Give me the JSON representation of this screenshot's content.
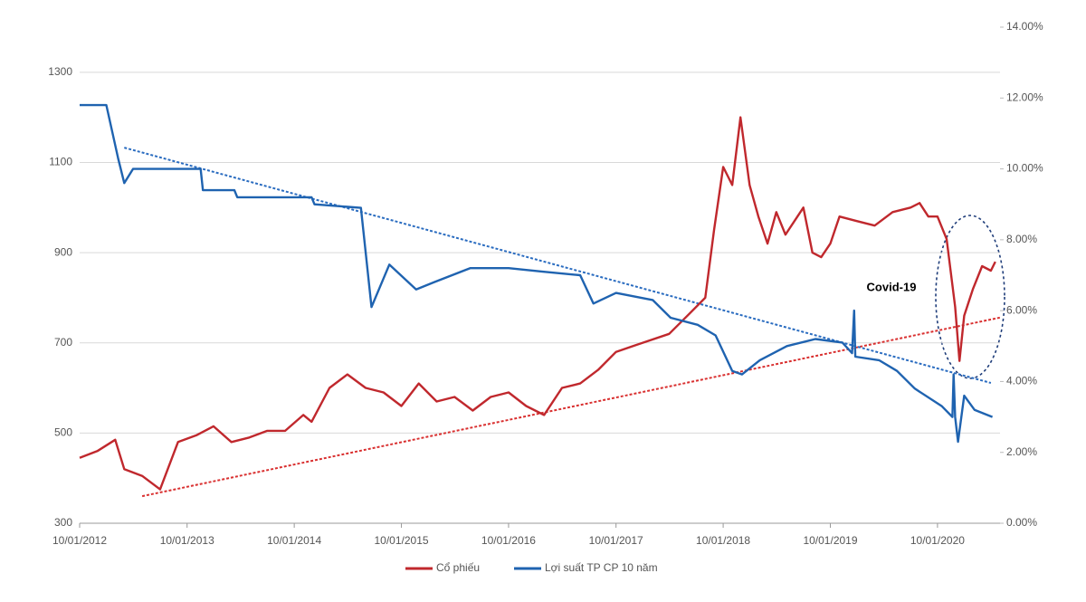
{
  "chart_data": {
    "type": "line",
    "xlim": [
      "10/01/2012",
      "10/08/2020"
    ],
    "xticks": [
      "10/01/2012",
      "10/01/2013",
      "10/01/2014",
      "10/01/2015",
      "10/01/2016",
      "10/01/2017",
      "10/01/2018",
      "10/01/2019",
      "10/01/2020"
    ],
    "ylim": [
      300,
      1400
    ],
    "yticks": [
      300,
      500,
      700,
      900,
      1100,
      1300
    ],
    "y2lim": [
      0,
      14
    ],
    "y2ticks": [
      {
        "value": 0,
        "label": "0.00%"
      },
      {
        "value": 2,
        "label": "2.00%"
      },
      {
        "value": 4,
        "label": "4.00%"
      },
      {
        "value": 6,
        "label": "6.00%"
      },
      {
        "value": 8,
        "label": "8.00%"
      },
      {
        "value": 10,
        "label": "10.00%"
      },
      {
        "value": 12,
        "label": "12.00%"
      },
      {
        "value": 14,
        "label": "14.00%"
      }
    ],
    "grid": true,
    "legend": "bottom",
    "series": [
      {
        "name": "Cổ phiếu",
        "color": "#c0282d",
        "x": [
          "10/01/2012",
          "10/03/2012",
          "10/05/2012",
          "10/06/2012",
          "10/08/2012",
          "10/10/2012",
          "10/12/2012",
          "10/02/2013",
          "10/04/2013",
          "10/06/2013",
          "10/08/2013",
          "10/10/2013",
          "10/12/2013",
          "10/02/2014",
          "10/03/2014",
          "10/05/2014",
          "10/07/2014",
          "10/09/2014",
          "10/11/2014",
          "10/01/2015",
          "10/03/2015",
          "10/05/2015",
          "10/07/2015",
          "10/09/2015",
          "10/11/2015",
          "10/01/2016",
          "10/03/2016",
          "10/05/2016",
          "10/07/2016",
          "10/09/2016",
          "10/11/2016",
          "10/01/2017",
          "10/04/2017",
          "10/07/2017",
          "10/09/2017",
          "10/11/2017",
          "10/12/2017",
          "10/01/2018",
          "10/02/2018",
          "10/03/2018",
          "10/04/2018",
          "10/05/2018",
          "10/06/2018",
          "10/07/2018",
          "10/08/2018",
          "10/10/2018",
          "10/11/2018",
          "10/12/2018",
          "10/01/2019",
          "10/02/2019",
          "10/04/2019",
          "10/06/2019",
          "10/08/2019",
          "10/10/2019",
          "10/11/2019",
          "10/12/2019",
          "10/01/2020",
          "10/02/2020",
          "10/03/2020",
          "25/03/2020",
          "10/04/2020",
          "10/05/2020",
          "10/06/2020",
          "10/07/2020",
          "25/07/2020"
        ],
        "values": [
          445,
          460,
          485,
          420,
          405,
          375,
          480,
          495,
          515,
          480,
          490,
          505,
          505,
          540,
          525,
          600,
          630,
          600,
          590,
          560,
          610,
          570,
          580,
          550,
          580,
          590,
          560,
          540,
          600,
          610,
          640,
          680,
          700,
          720,
          760,
          800,
          950,
          1090,
          1050,
          1200,
          1050,
          980,
          920,
          990,
          940,
          1000,
          900,
          890,
          920,
          980,
          970,
          960,
          990,
          1000,
          1010,
          980,
          980,
          930,
          780,
          660,
          760,
          820,
          870,
          860,
          880
        ]
      },
      {
        "name": "Lợi suất TP CP 10 năm",
        "color": "#1f63b0",
        "axis": "y2",
        "x": [
          "10/01/2012",
          "10/04/2012",
          "20/05/2012",
          "10/06/2012",
          "10/07/2012",
          "25/02/2013",
          "05/03/2013",
          "20/06/2013",
          "30/06/2013",
          "10/03/2014",
          "20/03/2014",
          "25/08/2014",
          "30/09/2014",
          "30/11/2014",
          "01/03/2015",
          "01/05/2015",
          "01/09/2015",
          "10/01/2016",
          "05/05/2016",
          "10/09/2016",
          "25/10/2016",
          "10/01/2017",
          "15/05/2017",
          "15/07/2017",
          "15/10/2017",
          "15/12/2017",
          "10/02/2018",
          "15/03/2018",
          "15/05/2018",
          "15/08/2018",
          "20/11/2018",
          "20/02/2019",
          "25/03/2019",
          "01/04/2019",
          "05/04/2019",
          "25/06/2019",
          "25/08/2019",
          "25/10/2019",
          "25/01/2020",
          "01/03/2020",
          "05/03/2020",
          "10/03/2020",
          "20/03/2020",
          "10/04/2020",
          "15/05/2020",
          "15/07/2020"
        ],
        "values": [
          11.8,
          11.8,
          10.3,
          9.6,
          10.0,
          10.0,
          9.4,
          9.4,
          9.2,
          9.2,
          9.0,
          8.9,
          6.1,
          7.3,
          6.6,
          6.8,
          7.2,
          7.2,
          7.1,
          7.0,
          6.2,
          6.5,
          6.3,
          5.8,
          5.6,
          5.3,
          4.3,
          4.2,
          4.6,
          5.0,
          5.2,
          5.1,
          4.8,
          6.0,
          4.7,
          4.6,
          4.3,
          3.8,
          3.3,
          3.0,
          4.2,
          3.0,
          2.3,
          3.6,
          3.2,
          3.0
        ]
      }
    ],
    "trend_lines": [
      {
        "color": "#d93030",
        "x": [
          "10/08/2012",
          "10/08/2020"
        ],
        "values": [
          360,
          756
        ]
      },
      {
        "color": "#2a6cc0",
        "axis": "y2",
        "x": [
          "10/06/2012",
          "10/07/2020"
        ],
        "values": [
          10.6,
          3.96
        ]
      }
    ],
    "annotations": [
      {
        "text": "Covid-19"
      }
    ]
  }
}
